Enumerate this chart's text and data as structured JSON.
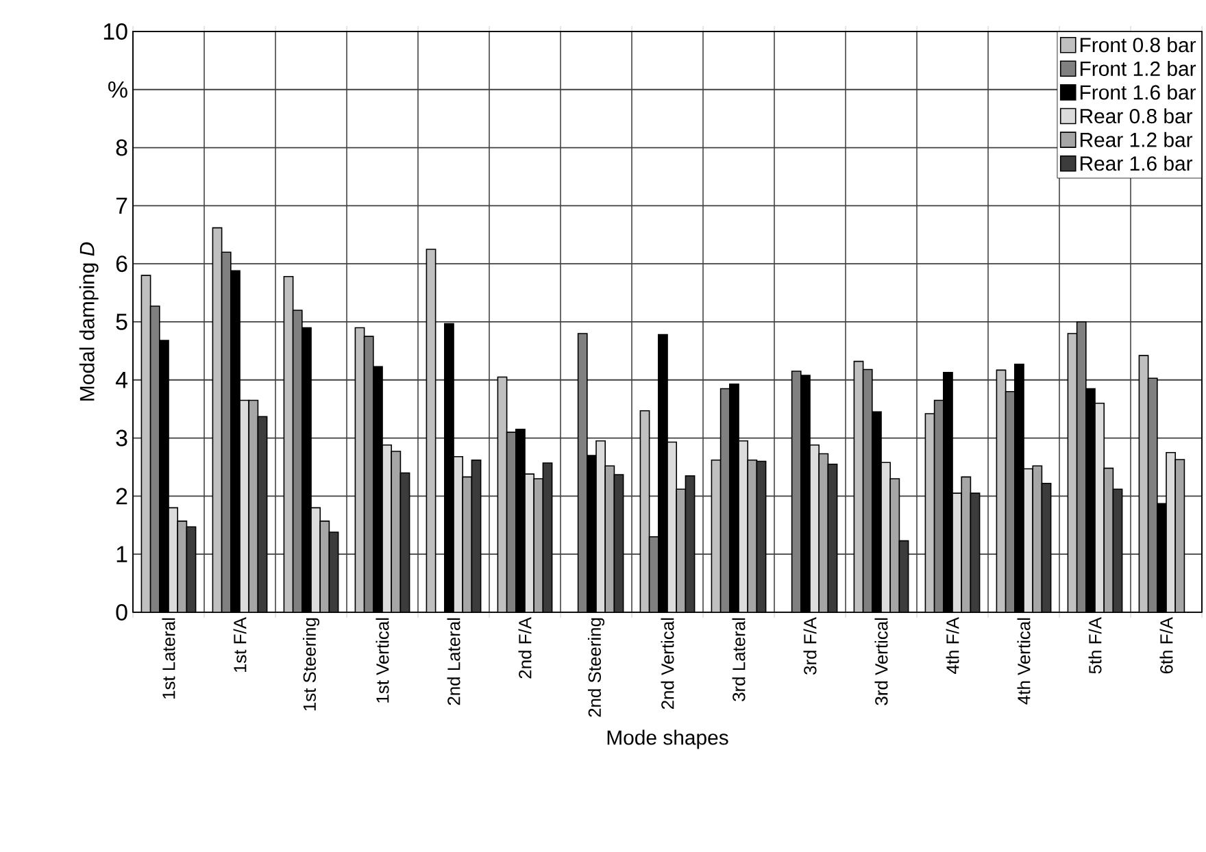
{
  "chart_data": {
    "type": "bar",
    "xlabel": "Mode shapes",
    "ylabel": "Modal damping *D*",
    "categories": [
      "1st Lateral",
      "1st F/A",
      "1st Steering",
      "1st Vertical",
      "2nd Lateral",
      "2nd F/A",
      "2nd Steering",
      "2nd Vertical",
      "3rd Lateral",
      "3rd F/A",
      "3rd Vertical",
      "4th F/A",
      "4th Vertical",
      "5th F/A",
      "6th F/A"
    ],
    "series": [
      {
        "name": "Front 0.8 bar",
        "color": "#c0c0c0",
        "values": [
          5.8,
          6.62,
          5.78,
          4.9,
          6.25,
          4.05,
          null,
          3.47,
          2.62,
          null,
          4.32,
          3.42,
          4.17,
          4.8,
          4.42
        ]
      },
      {
        "name": "Front 1.2 bar",
        "color": "#808080",
        "values": [
          5.27,
          6.2,
          5.2,
          4.75,
          null,
          3.1,
          4.8,
          1.3,
          3.85,
          4.15,
          4.18,
          3.65,
          3.8,
          5.0,
          4.03
        ]
      },
      {
        "name": "Front 1.6 bar",
        "color": "#000000",
        "values": [
          4.68,
          5.88,
          4.9,
          4.23,
          4.97,
          3.15,
          2.7,
          4.78,
          3.93,
          4.08,
          3.45,
          4.13,
          4.27,
          3.85,
          1.87
        ]
      },
      {
        "name": "Rear 0.8 bar",
        "color": "#dcdcdc",
        "values": [
          1.8,
          3.65,
          1.8,
          2.88,
          2.68,
          2.38,
          2.95,
          2.93,
          2.95,
          2.88,
          2.58,
          2.05,
          2.47,
          3.6,
          2.75
        ]
      },
      {
        "name": "Rear 1.2 bar",
        "color": "#a6a6a6",
        "values": [
          1.57,
          3.65,
          1.57,
          2.77,
          2.33,
          2.3,
          2.52,
          2.12,
          2.62,
          2.73,
          2.3,
          2.33,
          2.52,
          2.48,
          2.63
        ]
      },
      {
        "name": "Rear 1.6 bar",
        "color": "#3c3c3c",
        "values": [
          1.47,
          3.37,
          1.38,
          2.4,
          2.62,
          2.57,
          2.37,
          2.35,
          2.6,
          2.55,
          1.23,
          2.05,
          2.22,
          2.12,
          null
        ]
      }
    ],
    "ylim": [
      0,
      10
    ],
    "yticks": [
      0,
      1,
      2,
      3,
      4,
      5,
      6,
      7,
      8,
      {
        "value": 9,
        "label": "%"
      },
      10
    ],
    "grid": true,
    "legend": "top right"
  }
}
